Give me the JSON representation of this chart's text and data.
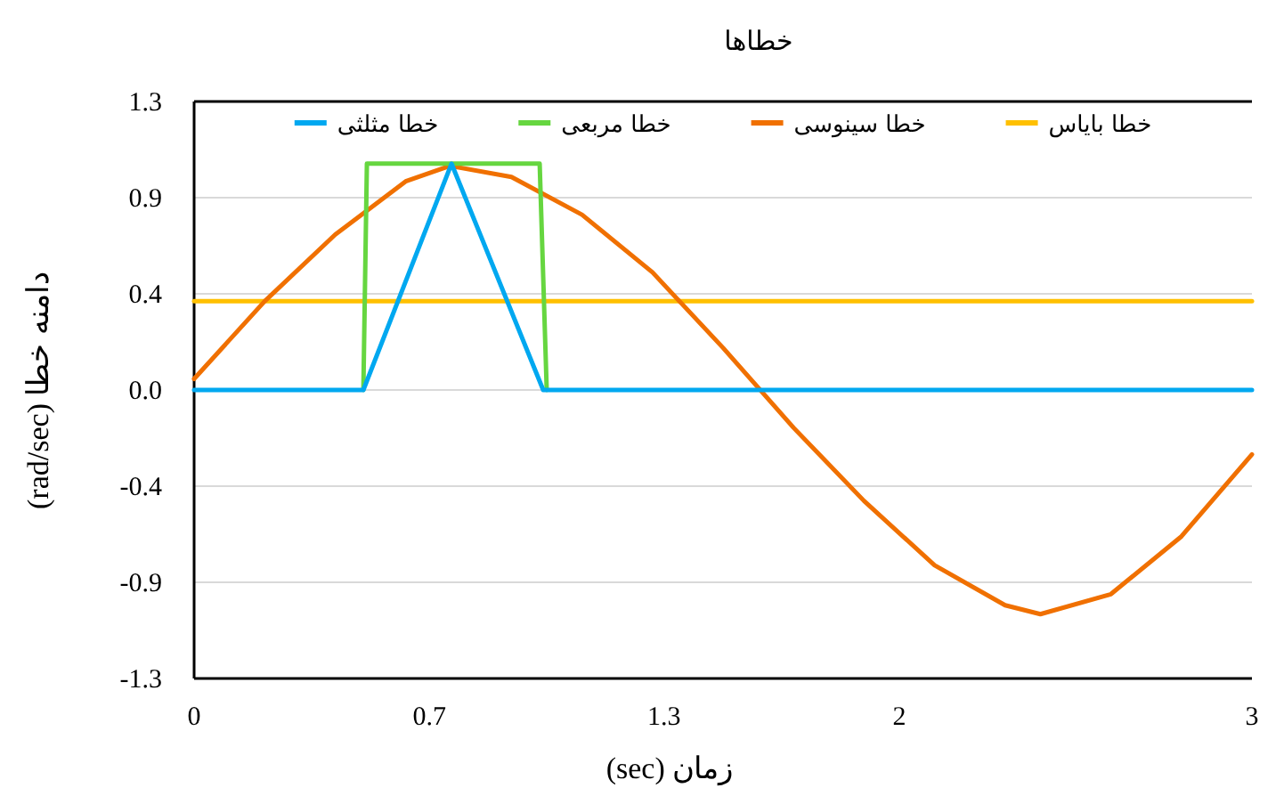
{
  "chart_data": {
    "type": "line",
    "title": "خطاها",
    "xlabel": "زمان (sec)",
    "ylabel": "دامنه خطا (rad/sec)",
    "xlim": [
      0,
      3
    ],
    "ylim": [
      -1.3,
      1.3
    ],
    "xticks": [
      0,
      {
        "value": 0.667,
        "label": "0.7"
      },
      {
        "value": 1.333,
        "label": "1.3"
      },
      2,
      3
    ],
    "yticks": [
      -1.3,
      {
        "value": -0.867,
        "label": "-0.9"
      },
      {
        "value": -0.433,
        "label": "-0.4"
      },
      {
        "value": 0,
        "label": "0.0"
      },
      {
        "value": 0.433,
        "label": "0.4"
      },
      {
        "value": 0.867,
        "label": "0.9"
      },
      1.3
    ],
    "grid": "y",
    "legend": "top",
    "marker": "none",
    "line_style": "solid",
    "series": [
      {
        "name": "خطا مثلثی",
        "color": "#00a8f0",
        "x": [
          0,
          0.48,
          0.73,
          0.99,
          3
        ],
        "values": [
          0,
          0,
          1.02,
          0,
          0
        ]
      },
      {
        "name": "خطا مربعی",
        "color": "#66d640",
        "x": [
          0.48,
          0.49,
          0.98,
          1.0
        ],
        "values": [
          0,
          1.02,
          1.02,
          0
        ]
      },
      {
        "name": "خطا سینوسی",
        "color": "#f07000",
        "x": [
          0,
          0.2,
          0.4,
          0.6,
          0.725,
          0.9,
          1.1,
          1.3,
          1.5,
          1.7,
          1.9,
          2.1,
          2.3,
          2.4,
          2.6,
          2.8,
          3.0
        ],
        "values": [
          0.05,
          0.4,
          0.7,
          0.94,
          1.01,
          0.96,
          0.79,
          0.53,
          0.19,
          -0.17,
          -0.5,
          -0.79,
          -0.97,
          -1.01,
          -0.92,
          -0.66,
          -0.29
        ]
      },
      {
        "name": "خطا بایاس",
        "color": "#ffc000",
        "x": [
          0,
          3
        ],
        "values": [
          0.4,
          0.4
        ]
      }
    ]
  }
}
